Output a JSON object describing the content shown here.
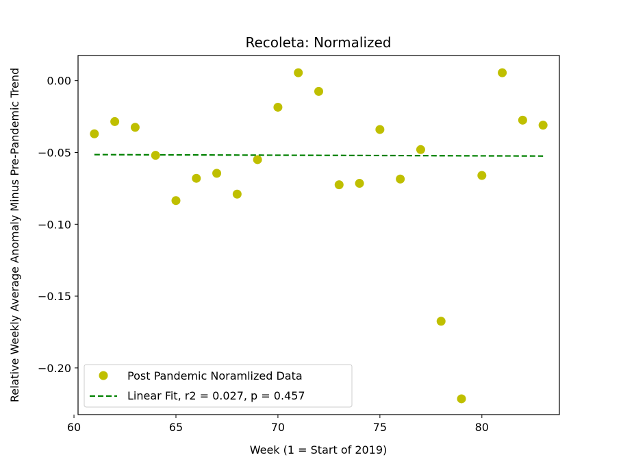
{
  "chart_data": {
    "type": "scatter",
    "title": "Recoleta: Normalized",
    "xlabel": "Week (1 = Start of 2019)",
    "ylabel": "Relative Weekly Average Anomaly Minus Pre-Pandemic Trend",
    "xlim": [
      60.2,
      83.8
    ],
    "ylim": [
      -0.2325,
      0.0175
    ],
    "xticks": [
      60,
      65,
      70,
      75,
      80
    ],
    "xtick_labels": [
      "60",
      "65",
      "70",
      "75",
      "80"
    ],
    "yticks": [
      0.0,
      -0.05,
      -0.1,
      -0.15,
      -0.2
    ],
    "ytick_labels": [
      "0.00",
      "−0.05",
      "−0.10",
      "−0.15",
      "−0.20"
    ],
    "grid": false,
    "legend_position": "lower-left",
    "series": [
      {
        "name": "Post Pandemic Noramlized Data",
        "kind": "markers",
        "color": "#bfbf00",
        "x": [
          61,
          62,
          63,
          64,
          65,
          66,
          67,
          68,
          69,
          70,
          71,
          72,
          73,
          74,
          75,
          76,
          77,
          78,
          79,
          80,
          81,
          82,
          83
        ],
        "y": [
          -0.037,
          -0.0285,
          -0.0325,
          -0.052,
          -0.0835,
          -0.068,
          -0.0645,
          -0.079,
          -0.055,
          -0.0185,
          0.0055,
          -0.0075,
          -0.0725,
          -0.0715,
          -0.034,
          -0.0685,
          -0.048,
          -0.1675,
          -0.2215,
          -0.066,
          0.0055,
          -0.0275,
          -0.031
        ]
      },
      {
        "name": "Linear Fit, r2 = 0.027, p = 0.457",
        "kind": "dashed-line",
        "color": "#008000",
        "x": [
          61,
          83
        ],
        "y": [
          -0.0515,
          -0.0525
        ]
      }
    ]
  }
}
